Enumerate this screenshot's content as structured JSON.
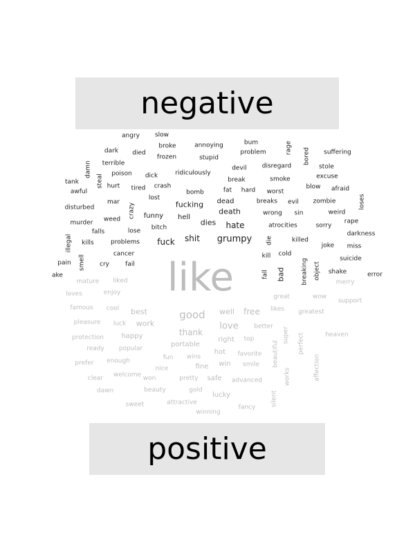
{
  "labels": {
    "negative": "negative",
    "positive": "positive"
  },
  "colors": {
    "negative": "#1a1a1a",
    "positive": "#bdbdbd",
    "box": "#e6e6e6"
  },
  "negative_words": [
    "angry",
    "slow",
    "bum",
    "broke",
    "annoying",
    "rage",
    "dark",
    "died",
    "frozen",
    "stupid",
    "problem",
    "bored",
    "suffering",
    "terrible",
    "damn",
    "devil",
    "disregard",
    "stole",
    "poison",
    "dick",
    "ridiculously",
    "steal",
    "tank",
    "break",
    "smoke",
    "excuse",
    "hurt",
    "tired",
    "crash",
    "awful",
    "fat",
    "hard",
    "worst",
    "blow",
    "afraid",
    "bomb",
    "lost",
    "mar",
    "zombie",
    "loses",
    "fucking",
    "dead",
    "breaks",
    "evil",
    "disturbed",
    "crazy",
    "death",
    "wrong",
    "sin",
    "weird",
    "funny",
    "weed",
    "hell",
    "dies",
    "rape",
    "murder",
    "hate",
    "atrocities",
    "sorry",
    "bitch",
    "falls",
    "lose",
    "darkness",
    "shit",
    "grumpy",
    "illegal",
    "kills",
    "problems",
    "fuck",
    "die",
    "killed",
    "joke",
    "miss",
    "cancer",
    "kill",
    "cold",
    "suicide",
    "smell",
    "pain",
    "cry",
    "fail",
    "breaking",
    "object",
    "fall",
    "bad",
    "shake",
    "error",
    "ake"
  ],
  "center_word": "like",
  "positive_words": [
    "mature",
    "liked",
    "merry",
    "loves",
    "enjoy",
    "great",
    "wow",
    "support",
    "famous",
    "cool",
    "best",
    "well",
    "free",
    "likes",
    "greatest",
    "good",
    "pleasure",
    "luck",
    "work",
    "better",
    "love",
    "heaven",
    "protection",
    "happy",
    "thank",
    "right",
    "top",
    "super",
    "perfect",
    "ready",
    "popular",
    "portable",
    "hot",
    "favorite",
    "affection",
    "prefer",
    "enough",
    "fun",
    "wins",
    "win",
    "smile",
    "beautiful",
    "works",
    "clear",
    "welcome",
    "nice",
    "fine",
    "won",
    "pretty",
    "safe",
    "advanced",
    "dawn",
    "beauty",
    "gold",
    "lucky",
    "silent",
    "sweet",
    "attractive",
    "fancy",
    "winning"
  ]
}
